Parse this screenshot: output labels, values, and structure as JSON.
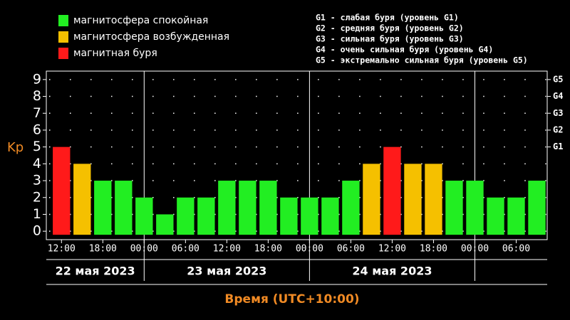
{
  "chart_data": {
    "type": "bar",
    "y_label": "Kp",
    "x_label": "Время (UTC+10:00)",
    "legend": [
      {
        "name": "магнитосфера спокойная",
        "color": "#22ee22"
      },
      {
        "name": "магнитосфера возбужденная",
        "color": "#f5c000"
      },
      {
        "name": "магнитная буря",
        "color": "#ff1a1a"
      }
    ],
    "storm_levels": [
      "G1 - слабая буря (уровень G1)",
      "G2 - средняя буря (уровень G2)",
      "G3 - сильная буря (уровень G3)",
      "G4 - очень сильная буря (уровень G4)",
      "G5 - экстремально сильная буря (уровень G5)"
    ],
    "x": [
      0,
      3,
      6,
      9,
      12,
      15,
      18,
      21,
      24,
      27,
      30,
      33,
      36,
      39,
      42,
      45,
      48,
      51,
      54,
      57,
      60,
      63,
      66,
      69
    ],
    "values": [
      5,
      4,
      3,
      3,
      2,
      1,
      2,
      2,
      3,
      3,
      3,
      2,
      2,
      2,
      3,
      4,
      5,
      4,
      4,
      3,
      3,
      2,
      2,
      3
    ],
    "colors": [
      "#ff1a1a",
      "#f5c000",
      "#22ee22",
      "#22ee22",
      "#22ee22",
      "#22ee22",
      "#22ee22",
      "#22ee22",
      "#22ee22",
      "#22ee22",
      "#22ee22",
      "#22ee22",
      "#22ee22",
      "#22ee22",
      "#22ee22",
      "#f5c000",
      "#ff1a1a",
      "#f5c000",
      "#f5c000",
      "#22ee22",
      "#22ee22",
      "#22ee22",
      "#22ee22",
      "#22ee22"
    ],
    "xlim": [
      -2.2,
      70.5
    ],
    "xticks": [
      {
        "value": 0,
        "label": "12:00"
      },
      {
        "value": 6,
        "label": "18:00"
      },
      {
        "value": 12,
        "label": "00:00"
      },
      {
        "value": 18,
        "label": "06:00"
      },
      {
        "value": 24,
        "label": "12:00"
      },
      {
        "value": 30,
        "label": "18:00"
      },
      {
        "value": 36,
        "label": "00:00"
      },
      {
        "value": 42,
        "label": "06:00"
      },
      {
        "value": 48,
        "label": "12:00"
      },
      {
        "value": 54,
        "label": "18:00"
      },
      {
        "value": 60,
        "label": "00:00"
      },
      {
        "value": 66,
        "label": "06:00"
      }
    ],
    "day_separators": [
      12,
      36,
      60
    ],
    "days": [
      "22 мая 2023",
      "23 мая 2023",
      "24 мая 2023"
    ],
    "ylim": [
      -0.5,
      9.5
    ],
    "yticks": [
      0,
      1,
      2,
      3,
      4,
      5,
      6,
      7,
      8,
      9
    ],
    "y2lim": [
      -0.5,
      9.5
    ],
    "y2ticks": [
      {
        "value": 5,
        "label": "G1"
      },
      {
        "value": 6,
        "label": "G2"
      },
      {
        "value": 7,
        "label": "G3"
      },
      {
        "value": 8,
        "label": "G4"
      },
      {
        "value": 9,
        "label": "G5"
      }
    ],
    "grid": true
  }
}
